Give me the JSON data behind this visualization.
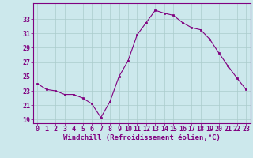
{
  "x": [
    0,
    1,
    2,
    3,
    4,
    5,
    6,
    7,
    8,
    9,
    10,
    11,
    12,
    13,
    14,
    15,
    16,
    17,
    18,
    19,
    20,
    21,
    22,
    23
  ],
  "y": [
    24.0,
    23.2,
    23.0,
    22.5,
    22.5,
    22.0,
    21.2,
    19.3,
    21.5,
    25.0,
    27.2,
    30.8,
    32.5,
    34.2,
    33.8,
    33.5,
    32.5,
    31.8,
    31.5,
    30.2,
    28.3,
    26.5,
    24.8,
    23.2
  ],
  "line_color": "#800080",
  "marker": "s",
  "marker_size": 2.0,
  "bg_color": "#cce8ec",
  "grid_color": "#aacccc",
  "xlabel": "Windchill (Refroidissement éolien,°C)",
  "ylabel_ticks": [
    19,
    21,
    23,
    25,
    27,
    29,
    31,
    33
  ],
  "xticks": [
    0,
    1,
    2,
    3,
    4,
    5,
    6,
    7,
    8,
    9,
    10,
    11,
    12,
    13,
    14,
    15,
    16,
    17,
    18,
    19,
    20,
    21,
    22,
    23
  ],
  "ylim": [
    18.5,
    35.2
  ],
  "xlim": [
    -0.5,
    23.5
  ],
  "label_color": "#800080",
  "tick_color": "#800080",
  "spine_color": "#800080",
  "tick_fontsize": 6.0,
  "xlabel_fontsize": 6.5
}
